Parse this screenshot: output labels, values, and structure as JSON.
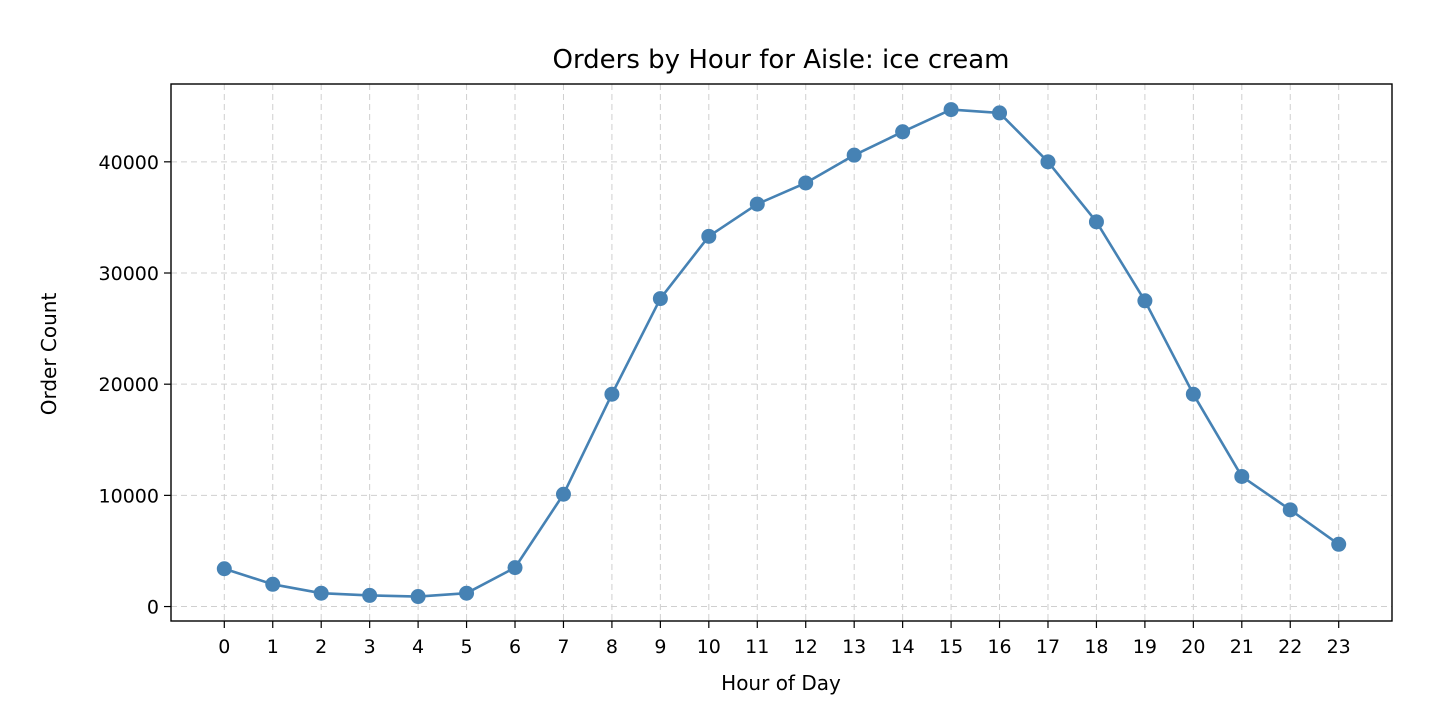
{
  "chart_data": {
    "type": "line",
    "title": "Orders by Hour for Aisle: ice cream",
    "xlabel": "Hour of Day",
    "ylabel": "Order Count",
    "x": [
      0,
      1,
      2,
      3,
      4,
      5,
      6,
      7,
      8,
      9,
      10,
      11,
      12,
      13,
      14,
      15,
      16,
      17,
      18,
      19,
      20,
      21,
      22,
      23
    ],
    "x_tick_labels": [
      "0",
      "1",
      "2",
      "3",
      "4",
      "5",
      "6",
      "7",
      "8",
      "9",
      "10",
      "11",
      "12",
      "13",
      "14",
      "15",
      "16",
      "17",
      "18",
      "19",
      "20",
      "21",
      "22",
      "23"
    ],
    "series": [
      {
        "values": [
          3400,
          2000,
          1200,
          1000,
          900,
          1200,
          3500,
          10100,
          19100,
          27700,
          33300,
          36200,
          38100,
          40600,
          42700,
          44700,
          44400,
          40000,
          34600,
          27500,
          19100,
          11700,
          8700,
          5600
        ],
        "color": "#4682b4",
        "marker": "circle"
      }
    ],
    "y_ticks": [
      0,
      10000,
      20000,
      30000,
      40000
    ],
    "y_tick_labels": [
      "0",
      "10000",
      "20000",
      "30000",
      "40000"
    ],
    "xlim": [
      -1.1,
      24.1
    ],
    "ylim": [
      -1300,
      47000
    ],
    "grid": true
  }
}
